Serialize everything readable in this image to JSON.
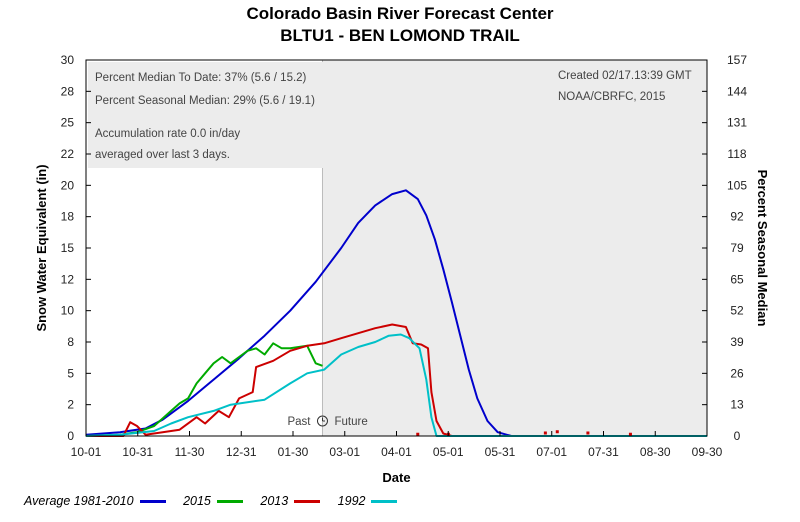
{
  "header": {
    "title": "Colorado Basin River Forecast Center",
    "subtitle": "BLTU1 - BEN LOMOND TRAIL"
  },
  "info_left": {
    "line1": "Percent Median To Date: 37% (5.6 / 15.2)",
    "line2": "Percent Seasonal Median: 29% (5.6 / 19.1)",
    "line3": "Accumulation rate 0.0 in/day",
    "line4": "averaged over last 3 days."
  },
  "info_right": {
    "line1": "Created 02/17.13:39 GMT",
    "line2": "NOAA/CBRFC, 2015"
  },
  "past_future": {
    "past": "Past",
    "future": "Future"
  },
  "legend": {
    "items": [
      {
        "label": "Average 1981-2010",
        "color": "#0000cc"
      },
      {
        "label": "2015",
        "color": "#00aa00"
      },
      {
        "label": "2013",
        "color": "#cc0000"
      },
      {
        "label": "1992",
        "color": "#00c0c8"
      }
    ]
  },
  "chart_data": {
    "type": "line",
    "xlabel": "Date",
    "ylabel": "Snow Water Equivalent (in)",
    "y2label": "Percent Seasonal Median",
    "x_ticks": [
      "10-01",
      "10-31",
      "11-30",
      "12-31",
      "01-30",
      "03-01",
      "04-01",
      "05-01",
      "05-31",
      "07-01",
      "07-31",
      "08-30",
      "09-30"
    ],
    "y_ticks": [
      "0",
      "2",
      "5",
      "8",
      "10",
      "12",
      "15",
      "18",
      "20",
      "22",
      "25",
      "28",
      "30"
    ],
    "y2_ticks": [
      "0",
      "13",
      "26",
      "39",
      "52",
      "65",
      "79",
      "92",
      "105",
      "118",
      "131",
      "144",
      "157"
    ],
    "ylim": [
      0,
      30
    ],
    "y2lim": [
      0,
      157
    ],
    "x_range_days": [
      0,
      365
    ],
    "current_date_day": 139,
    "grid": false,
    "series": [
      {
        "name": "Average 1981-2010",
        "color": "#0000cc",
        "points": [
          [
            0,
            0.1
          ],
          [
            20,
            0.3
          ],
          [
            35,
            0.6
          ],
          [
            45,
            1.3
          ],
          [
            60,
            2.8
          ],
          [
            75,
            4.5
          ],
          [
            90,
            6.2
          ],
          [
            105,
            8.0
          ],
          [
            120,
            10.0
          ],
          [
            135,
            12.3
          ],
          [
            150,
            15.0
          ],
          [
            160,
            17.0
          ],
          [
            170,
            18.4
          ],
          [
            180,
            19.3
          ],
          [
            188,
            19.6
          ],
          [
            195,
            18.9
          ],
          [
            200,
            17.6
          ],
          [
            205,
            15.7
          ],
          [
            210,
            13.3
          ],
          [
            215,
            10.7
          ],
          [
            220,
            8.0
          ],
          [
            225,
            5.3
          ],
          [
            230,
            3.0
          ],
          [
            236,
            1.2
          ],
          [
            242,
            0.3
          ],
          [
            250,
            0.0
          ],
          [
            365,
            0.0
          ]
        ]
      },
      {
        "name": "2015",
        "color": "#00aa00",
        "points": [
          [
            0,
            0
          ],
          [
            20,
            0.1
          ],
          [
            30,
            0.3
          ],
          [
            40,
            0.8
          ],
          [
            45,
            1.4
          ],
          [
            50,
            2.0
          ],
          [
            55,
            2.6
          ],
          [
            60,
            3.0
          ],
          [
            65,
            4.2
          ],
          [
            70,
            5.0
          ],
          [
            75,
            5.8
          ],
          [
            80,
            6.3
          ],
          [
            85,
            5.8
          ],
          [
            90,
            6.3
          ],
          [
            95,
            6.8
          ],
          [
            100,
            7.0
          ],
          [
            105,
            6.5
          ],
          [
            110,
            7.4
          ],
          [
            115,
            7.0
          ],
          [
            120,
            7.0
          ],
          [
            125,
            7.1
          ],
          [
            130,
            7.2
          ],
          [
            135,
            5.8
          ],
          [
            139,
            5.6
          ]
        ]
      },
      {
        "name": "2013",
        "color": "#cc0000",
        "points": [
          [
            0,
            0
          ],
          [
            22,
            0
          ],
          [
            26,
            1.1
          ],
          [
            30,
            0.8
          ],
          [
            35,
            0.1
          ],
          [
            45,
            0.3
          ],
          [
            55,
            0.5
          ],
          [
            65,
            1.5
          ],
          [
            70,
            1.0
          ],
          [
            78,
            2.0
          ],
          [
            84,
            1.5
          ],
          [
            90,
            3.0
          ],
          [
            98,
            3.5
          ],
          [
            100,
            5.5
          ],
          [
            110,
            6.0
          ],
          [
            120,
            6.8
          ],
          [
            130,
            7.2
          ],
          [
            140,
            7.4
          ],
          [
            150,
            7.8
          ],
          [
            160,
            8.2
          ],
          [
            170,
            8.6
          ],
          [
            180,
            8.9
          ],
          [
            188,
            8.7
          ],
          [
            192,
            7.4
          ],
          [
            197,
            7.3
          ],
          [
            201,
            7.0
          ],
          [
            203,
            3.5
          ],
          [
            206,
            1.2
          ],
          [
            210,
            0.2
          ],
          [
            215,
            0.0
          ],
          [
            365,
            0.0
          ]
        ]
      },
      {
        "name": "1992",
        "color": "#00c0c8",
        "points": [
          [
            0,
            0
          ],
          [
            20,
            0.1
          ],
          [
            40,
            0.4
          ],
          [
            50,
            1.0
          ],
          [
            60,
            1.5
          ],
          [
            75,
            2.0
          ],
          [
            85,
            2.5
          ],
          [
            105,
            2.9
          ],
          [
            120,
            4.2
          ],
          [
            130,
            5.0
          ],
          [
            140,
            5.3
          ],
          [
            150,
            6.5
          ],
          [
            160,
            7.1
          ],
          [
            170,
            7.5
          ],
          [
            178,
            8.0
          ],
          [
            185,
            8.1
          ],
          [
            190,
            7.8
          ],
          [
            196,
            7.0
          ],
          [
            200,
            4.5
          ],
          [
            203,
            1.5
          ],
          [
            206,
            0.0
          ],
          [
            365,
            0.0
          ]
        ]
      }
    ],
    "scatter_marks": [
      [
        195,
        0.1
      ],
      [
        213,
        0.1
      ],
      [
        270,
        0.2
      ],
      [
        277,
        0.3
      ],
      [
        295,
        0.2
      ],
      [
        320,
        0.1
      ]
    ]
  }
}
